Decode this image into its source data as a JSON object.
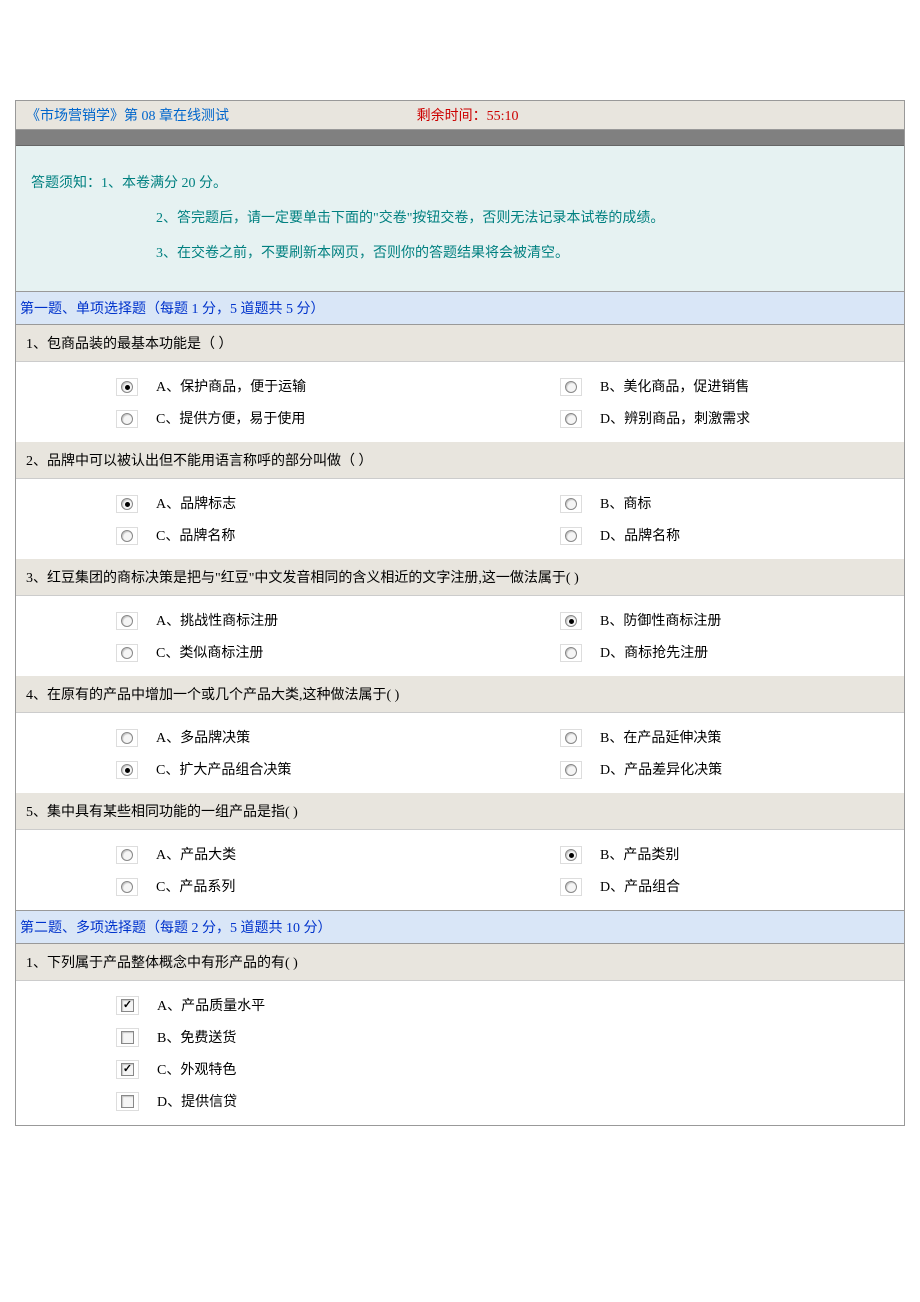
{
  "header": {
    "title": "《市场营销学》第 08 章在线测试",
    "timer_label": "剩余时间：",
    "timer_value": "55:10"
  },
  "instructions": {
    "line1": "答题须知：1、本卷满分 20 分。",
    "line2": "2、答完题后，请一定要单击下面的\"交卷\"按钮交卷，否则无法记录本试卷的成绩。",
    "line3": "3、在交卷之前，不要刷新本网页，否则你的答题结果将会被清空。"
  },
  "section1": {
    "header": "第一题、单项选择题（每题 1 分，5 道题共 5 分）",
    "questions": [
      {
        "text": "1、包商品装的最基本功能是（ ）",
        "options": [
          {
            "label": "A、保护商品，便于运输",
            "selected": true
          },
          {
            "label": "B、美化商品，促进销售",
            "selected": false
          },
          {
            "label": "C、提供方便，易于使用",
            "selected": false
          },
          {
            "label": "D、辨别商品，刺激需求",
            "selected": false
          }
        ]
      },
      {
        "text": "2、品牌中可以被认出但不能用语言称呼的部分叫做（ ）",
        "options": [
          {
            "label": "A、品牌标志",
            "selected": true
          },
          {
            "label": "B、商标",
            "selected": false
          },
          {
            "label": "C、品牌名称",
            "selected": false
          },
          {
            "label": "D、品牌名称",
            "selected": false
          }
        ]
      },
      {
        "text": "3、红豆集团的商标决策是把与\"红豆\"中文发音相同的含义相近的文字注册,这一做法属于( )",
        "options": [
          {
            "label": "A、挑战性商标注册",
            "selected": false
          },
          {
            "label": "B、防御性商标注册",
            "selected": true
          },
          {
            "label": "C、类似商标注册",
            "selected": false
          },
          {
            "label": "D、商标抢先注册",
            "selected": false
          }
        ]
      },
      {
        "text": "4、在原有的产品中增加一个或几个产品大类,这种做法属于( )",
        "options": [
          {
            "label": "A、多品牌决策",
            "selected": false
          },
          {
            "label": "B、在产品延伸决策",
            "selected": false
          },
          {
            "label": "C、扩大产品组合决策",
            "selected": true
          },
          {
            "label": "D、产品差异化决策",
            "selected": false
          }
        ]
      },
      {
        "text": "5、集中具有某些相同功能的一组产品是指( )",
        "options": [
          {
            "label": "A、产品大类",
            "selected": false
          },
          {
            "label": "B、产品类别",
            "selected": true
          },
          {
            "label": "C、产品系列",
            "selected": false
          },
          {
            "label": "D、产品组合",
            "selected": false
          }
        ]
      }
    ]
  },
  "section2": {
    "header": "第二题、多项选择题（每题 2 分，5 道题共 10 分）",
    "questions": [
      {
        "text": "1、下列属于产品整体概念中有形产品的有( )",
        "options": [
          {
            "label": "A、产品质量水平",
            "selected": true
          },
          {
            "label": "B、免费送货",
            "selected": false
          },
          {
            "label": "C、外观特色",
            "selected": true
          },
          {
            "label": "D、提供信贷",
            "selected": false
          }
        ]
      }
    ]
  },
  "colors": {
    "header_bg": "#e8e5de",
    "gray_band": "#808080",
    "instructions_bg": "#e6f2f2",
    "instructions_text": "#008080",
    "section_bg": "#d9e6f7",
    "section_text": "#0033cc",
    "question_bg": "#e8e5de",
    "title_text": "#0066cc",
    "timer_text": "#cc0000"
  }
}
